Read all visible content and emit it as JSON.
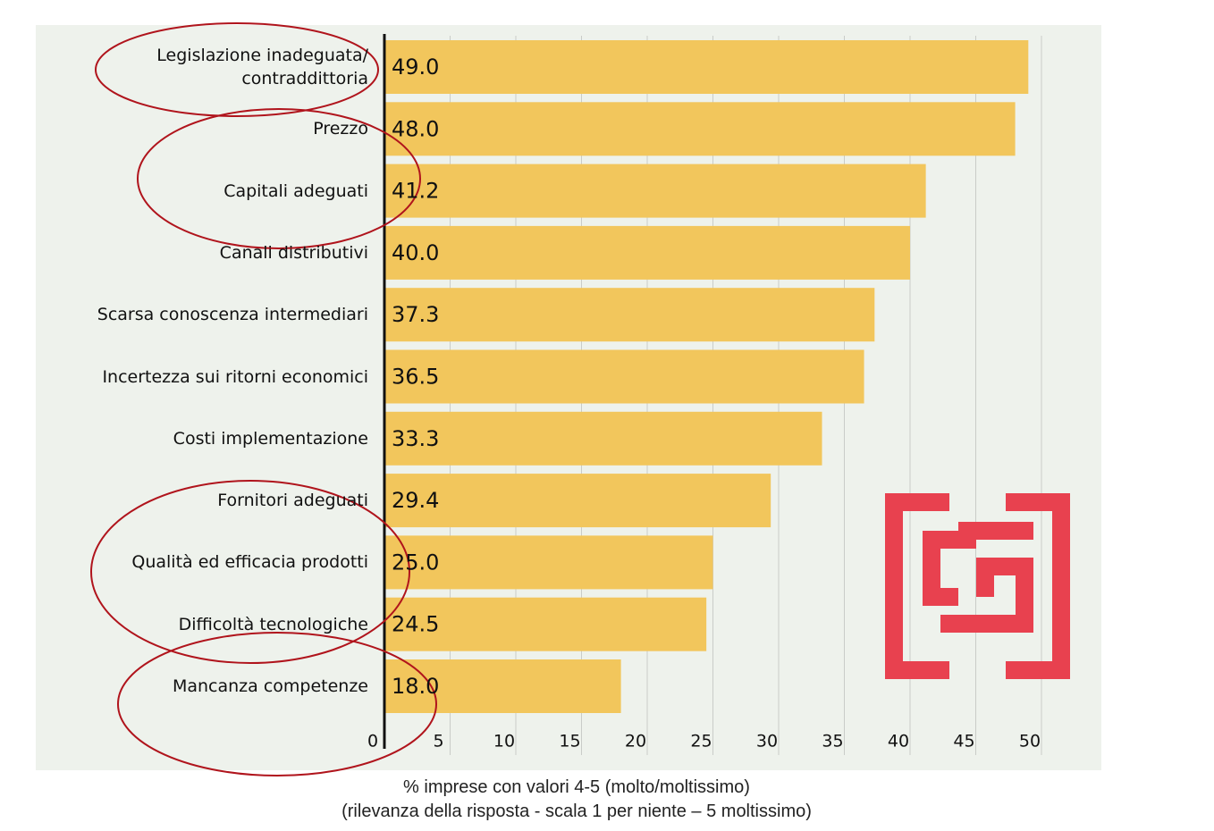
{
  "chart_data": {
    "type": "bar",
    "orientation": "horizontal",
    "categories": [
      "Legislazione inadeguata/\ncontraddittoria",
      "Prezzo",
      "Capitali adeguati",
      "Canali distributivi",
      "Scarsa conoscenza intermediari",
      "Incertezza sui ritorni economici",
      "Costi implementazione",
      "Fornitori adeguati",
      "Qualità ed efficacia prodotti",
      "Difficoltà tecnologiche",
      "Mancanza competenze"
    ],
    "values": [
      49,
      48,
      41.2,
      40,
      37.3,
      36.5,
      33.3,
      29.4,
      25,
      24.5,
      18
    ],
    "value_labels": [
      "49.0",
      "48.0",
      "41.2",
      "40.0",
      "37.3",
      "36.5",
      "33.3",
      "29.4",
      "25.0",
      "24.5",
      "18.0"
    ],
    "color": "#f2c65c",
    "xlim": [
      0,
      50
    ],
    "xticks": [
      0,
      5,
      10,
      15,
      20,
      25,
      30,
      35,
      40,
      45,
      50
    ],
    "grid": true,
    "xlabel": "% imprese con valori 4-5 (molto/moltissimo)\n(rilevanza della risposta - scala 1 per niente – 5 moltissimo)"
  }
}
